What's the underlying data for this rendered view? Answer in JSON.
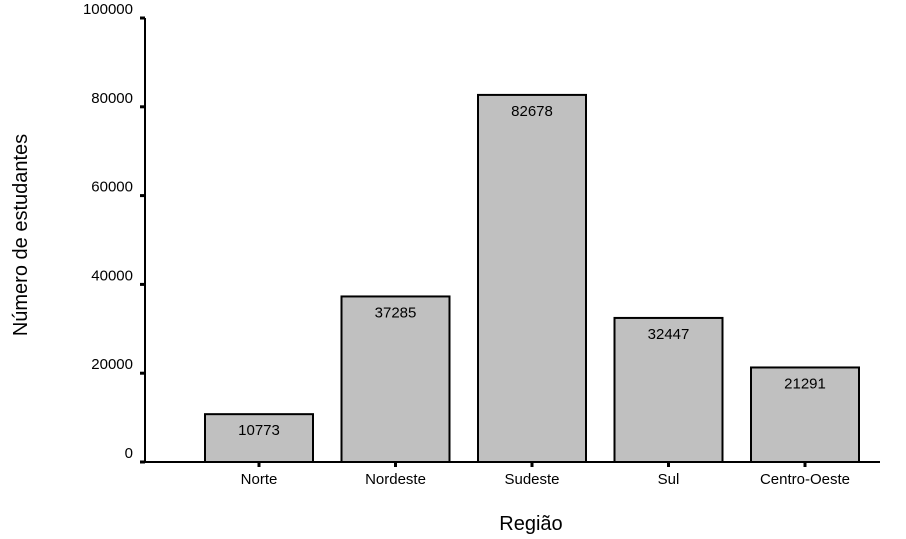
{
  "chart_data": {
    "type": "bar",
    "categories": [
      "Norte",
      "Nordeste",
      "Sudeste",
      "Sul",
      "Centro-Oeste"
    ],
    "values": [
      10773,
      37285,
      82678,
      32447,
      21291
    ],
    "data_labels": [
      "10773",
      "37285",
      "82678",
      "32447",
      "21291"
    ],
    "xlabel": "Região",
    "ylabel": "Número de estudantes",
    "ylim": [
      0,
      100000
    ],
    "yticks": [
      0,
      20000,
      40000,
      60000,
      80000,
      100000
    ],
    "ytick_labels": [
      "0",
      "20000",
      "40000",
      "60000",
      "80000",
      "100000"
    ],
    "bar_color": "#c0c0c0",
    "bar_edge_color": "#000000",
    "grid": false,
    "legend": "none"
  }
}
